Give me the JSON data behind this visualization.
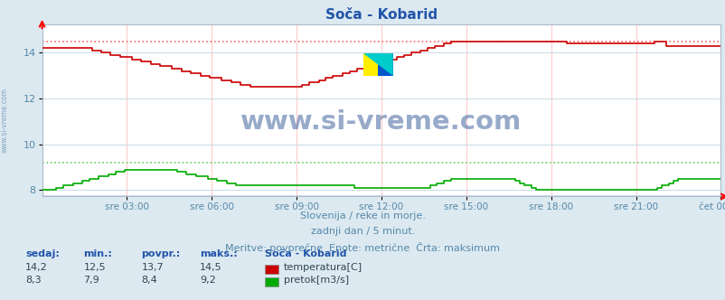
{
  "title": "Soča - Kobarid",
  "bg_color": "#dce9f0",
  "plot_bg_color": "#ffffff",
  "grid_color_v": "#ffcccc",
  "grid_color_h": "#ccdde8",
  "xlabel_color": "#5588aa",
  "ylabel_color": "#5588aa",
  "title_color": "#2255aa",
  "x_labels": [
    "sre 03:00",
    "sre 06:00",
    "sre 09:00",
    "sre 12:00",
    "sre 15:00",
    "sre 18:00",
    "sre 21:00",
    "čet 00:00"
  ],
  "ylim_lo": 7.72,
  "ylim_hi": 15.25,
  "yticks": [
    8,
    10,
    12,
    14
  ],
  "temp_max_line": 14.5,
  "flow_max_line": 9.2,
  "temp_color": "#cc0000",
  "flow_color": "#00aa00",
  "max_line_color_temp": "#ff6666",
  "max_line_color_flow": "#66cc66",
  "watermark_text": "www.si-vreme.com",
  "watermark_color": "#1a4488",
  "subtitle1": "Slovenija / reke in morje.",
  "subtitle2": "zadnji dan / 5 minut.",
  "subtitle3": "Meritve: povprečne  Enote: metrične  Črta: maksimum",
  "legend_header": "Soča - Kobarid",
  "legend_items": [
    {
      "label": "temperatura[C]",
      "color": "#cc0000"
    },
    {
      "label": "pretok[m3/s]",
      "color": "#00aa00"
    }
  ],
  "stats_headers": [
    "sedaj:",
    "min.:",
    "povpr.:",
    "maks.:"
  ],
  "stats_row0": [
    "14,2",
    "12,5",
    "13,7",
    "14,5"
  ],
  "stats_row1": [
    "8,3",
    "7,9",
    "8,4",
    "9,2"
  ],
  "left_label": "www.si-vreme.com",
  "border_color": "#aabbcc"
}
